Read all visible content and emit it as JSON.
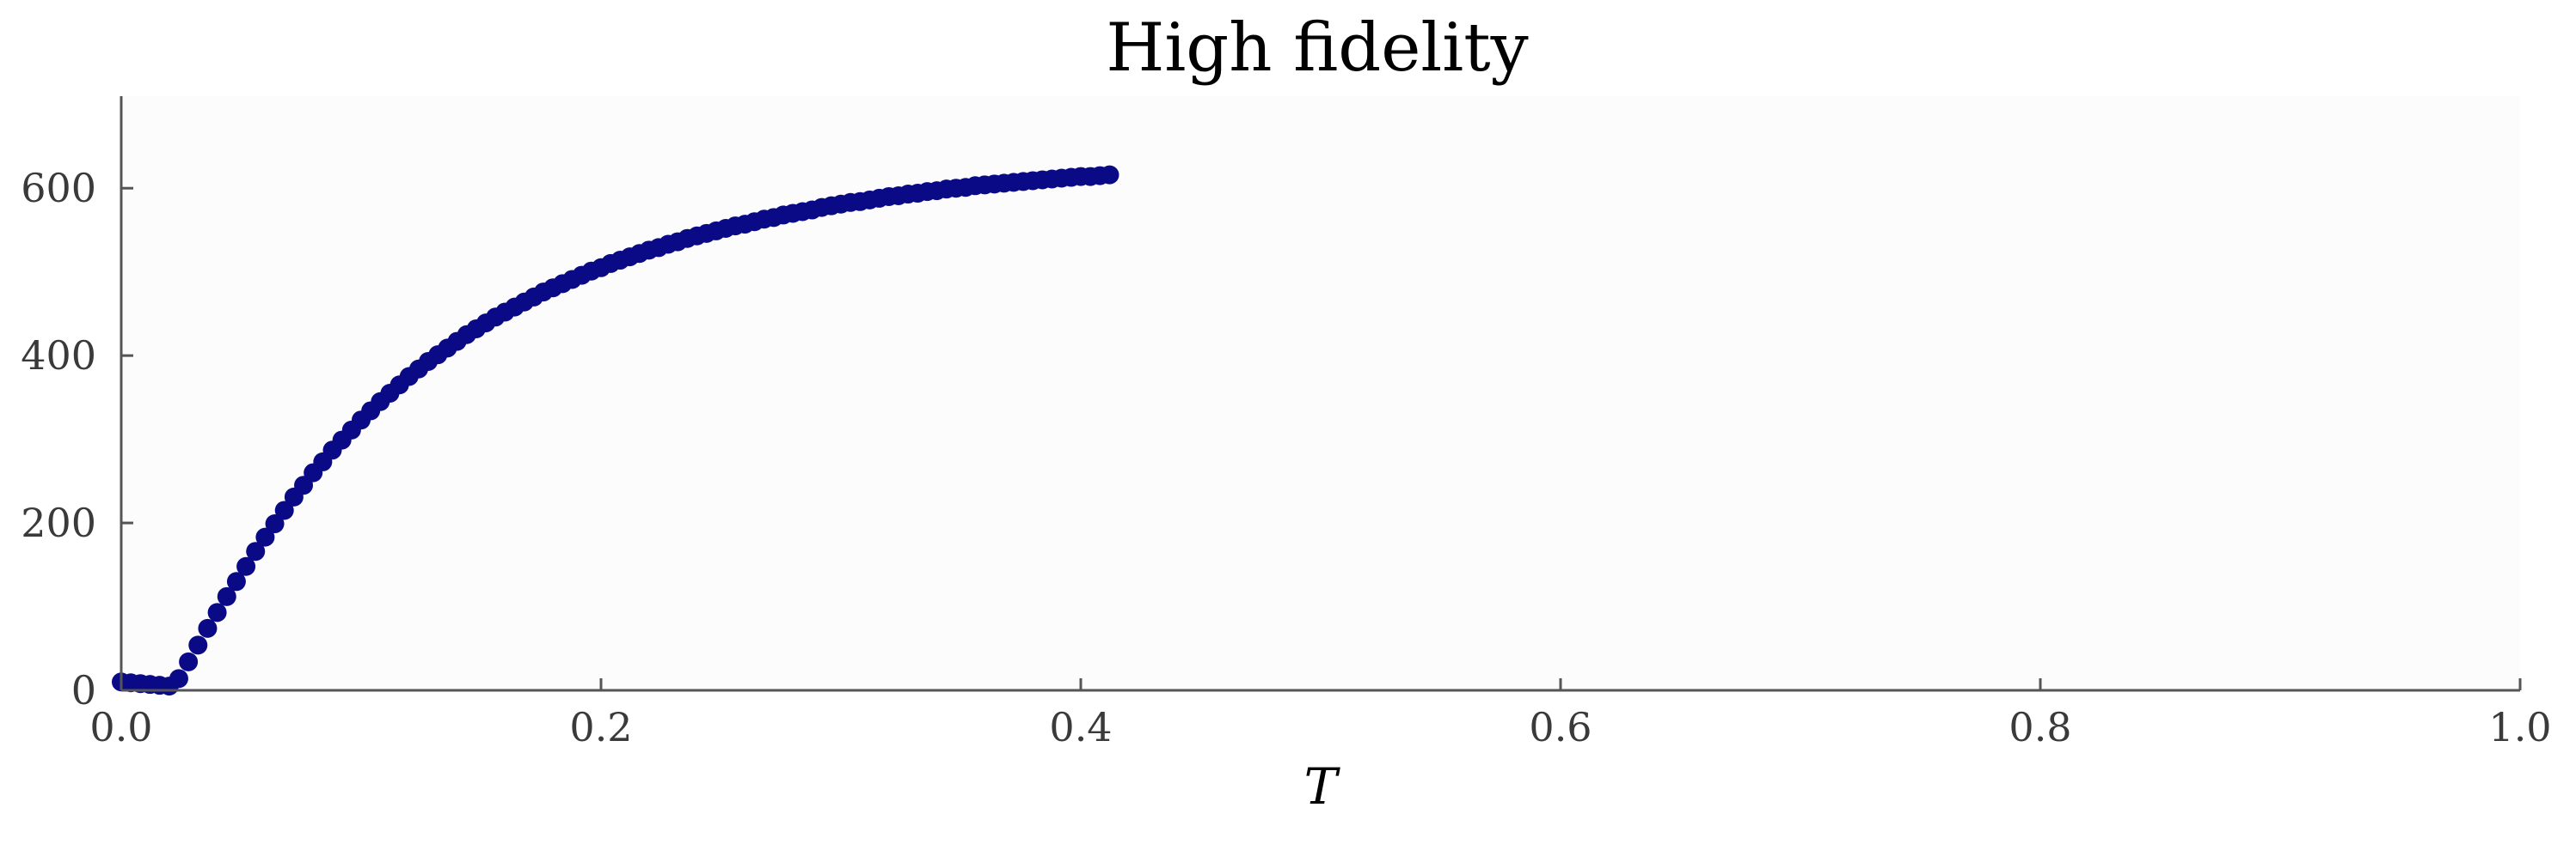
{
  "chart_data": {
    "type": "scatter",
    "title": "High fidelity",
    "xlabel": "T",
    "ylabel": "",
    "xlim": [
      0.0,
      1.0
    ],
    "ylim": [
      0,
      710
    ],
    "xticks": [
      0.0,
      0.2,
      0.4,
      0.6,
      0.8,
      1.0
    ],
    "xtick_labels": [
      "0.0",
      "0.2",
      "0.4",
      "0.6",
      "0.8",
      "1.0"
    ],
    "yticks": [
      0,
      200,
      400,
      600
    ],
    "ytick_labels": [
      "0",
      "200",
      "400",
      "600"
    ],
    "grid": false,
    "colors": {
      "marker": "#0a0a87",
      "plot_background": "#fcfcfd",
      "axis": "#555555"
    },
    "series": [
      {
        "x": [
          0.0,
          0.004,
          0.008,
          0.012,
          0.016,
          0.02,
          0.024,
          0.028,
          0.032,
          0.036,
          0.04,
          0.044,
          0.048,
          0.052,
          0.056,
          0.06,
          0.064,
          0.068,
          0.072,
          0.076,
          0.08,
          0.084,
          0.088,
          0.092,
          0.096,
          0.1,
          0.104,
          0.108,
          0.112,
          0.116,
          0.12,
          0.124,
          0.128,
          0.132,
          0.136,
          0.14,
          0.144,
          0.148,
          0.152,
          0.156,
          0.16,
          0.164,
          0.168,
          0.172,
          0.176,
          0.18,
          0.184,
          0.188,
          0.192,
          0.196,
          0.2,
          0.204,
          0.208,
          0.212,
          0.216,
          0.22,
          0.224,
          0.228,
          0.232,
          0.236,
          0.24,
          0.244,
          0.248,
          0.252,
          0.256,
          0.26,
          0.264,
          0.268,
          0.272,
          0.276,
          0.28,
          0.284,
          0.288,
          0.292,
          0.296,
          0.3,
          0.304,
          0.308,
          0.312,
          0.316,
          0.32,
          0.324,
          0.328,
          0.332,
          0.336,
          0.34,
          0.344,
          0.348,
          0.352,
          0.356,
          0.36,
          0.364,
          0.368,
          0.372,
          0.376,
          0.38,
          0.384,
          0.388,
          0.392,
          0.396,
          0.4,
          0.404,
          0.408,
          0.412
        ],
        "y": [
          10,
          9,
          8,
          7,
          6,
          5,
          14,
          34,
          54,
          74,
          93,
          112,
          130,
          148,
          166,
          183,
          199,
          215,
          231,
          245,
          260,
          273,
          287,
          299,
          311,
          323,
          334,
          345,
          355,
          365,
          375,
          384,
          393,
          401,
          409,
          417,
          425,
          432,
          439,
          446,
          452,
          458,
          464,
          470,
          476,
          481,
          486,
          491,
          496,
          501,
          505,
          510,
          514,
          518,
          522,
          526,
          529,
          533,
          536,
          540,
          543,
          546,
          549,
          552,
          555,
          557,
          560,
          563,
          565,
          568,
          570,
          572,
          574,
          577,
          579,
          581,
          583,
          584,
          586,
          588,
          590,
          591,
          593,
          594,
          596,
          597,
          599,
          600,
          601,
          603,
          604,
          605,
          606,
          607,
          608,
          609,
          610,
          611,
          612,
          613,
          614,
          614,
          615,
          616
        ]
      }
    ]
  }
}
